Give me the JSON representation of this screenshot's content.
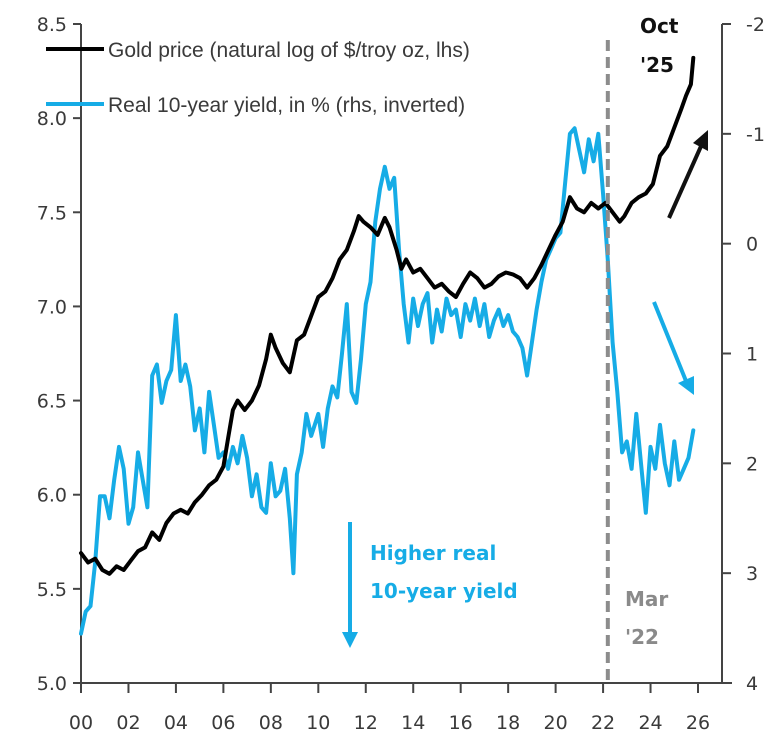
{
  "chart_data": {
    "type": "line",
    "title": "",
    "colors": {
      "gold": "#000000",
      "yield": "#16ace6",
      "marker": "#8c8c8c",
      "axis": "#444444",
      "text": "#3a3a3a"
    },
    "x_axis": {
      "range": [
        2000,
        2026.6
      ],
      "ticks": [
        2000,
        2002,
        2004,
        2006,
        2008,
        2010,
        2012,
        2014,
        2016,
        2018,
        2020,
        2022,
        2024,
        2026
      ],
      "tick_labels": [
        "00",
        "02",
        "04",
        "06",
        "08",
        "10",
        "12",
        "14",
        "16",
        "18",
        "20",
        "22",
        "24",
        "26"
      ]
    },
    "y_left": {
      "range": [
        5.0,
        8.5
      ],
      "ticks": [
        5.0,
        5.5,
        6.0,
        6.5,
        7.0,
        7.5,
        8.0,
        8.5
      ],
      "tick_labels": [
        "5.0",
        "5.5",
        "6.0",
        "6.5",
        "7.0",
        "7.5",
        "8.0",
        "8.5"
      ]
    },
    "y_right": {
      "range": [
        -2,
        4
      ],
      "inverted": true,
      "ticks": [
        -2,
        -1,
        0,
        1,
        2,
        3,
        4
      ],
      "tick_labels": [
        "-2",
        "-1",
        "0",
        "1",
        "2",
        "3",
        "4"
      ]
    },
    "legend": {
      "position": "top-left",
      "entries": [
        {
          "label": "Gold price (natural log of $/troy oz, lhs)",
          "series": "gold"
        },
        {
          "label": "Real 10-year yield, in % (rhs, inverted)",
          "series": "yield"
        }
      ]
    },
    "series": [
      {
        "name": "Gold price (natural log of $/troy oz, lhs)",
        "axis": "left",
        "x": [
          2000.0,
          2000.3,
          2000.6,
          2000.9,
          2001.2,
          2001.5,
          2001.8,
          2002.1,
          2002.4,
          2002.7,
          2003.0,
          2003.3,
          2003.6,
          2003.9,
          2004.2,
          2004.5,
          2004.8,
          2005.1,
          2005.4,
          2005.7,
          2006.0,
          2006.2,
          2006.4,
          2006.6,
          2006.9,
          2007.2,
          2007.5,
          2007.8,
          2008.0,
          2008.2,
          2008.5,
          2008.8,
          2009.1,
          2009.4,
          2009.7,
          2010.0,
          2010.3,
          2010.6,
          2010.9,
          2011.2,
          2011.5,
          2011.7,
          2011.9,
          2012.2,
          2012.5,
          2012.8,
          2013.0,
          2013.3,
          2013.5,
          2013.7,
          2014.0,
          2014.3,
          2014.6,
          2014.9,
          2015.2,
          2015.5,
          2015.8,
          2016.1,
          2016.4,
          2016.7,
          2017.0,
          2017.3,
          2017.6,
          2017.9,
          2018.2,
          2018.5,
          2018.8,
          2019.1,
          2019.4,
          2019.7,
          2020.0,
          2020.3,
          2020.6,
          2020.9,
          2021.2,
          2021.5,
          2021.8,
          2022.1,
          2022.4,
          2022.7,
          2022.9,
          2023.2,
          2023.5,
          2023.8,
          2024.1,
          2024.4,
          2024.7,
          2025.0,
          2025.3,
          2025.5,
          2025.7,
          2025.8
        ],
        "values": [
          5.69,
          5.64,
          5.66,
          5.6,
          5.58,
          5.62,
          5.6,
          5.65,
          5.7,
          5.72,
          5.8,
          5.76,
          5.85,
          5.9,
          5.92,
          5.9,
          5.96,
          6.0,
          6.05,
          6.08,
          6.15,
          6.3,
          6.45,
          6.5,
          6.45,
          6.5,
          6.58,
          6.72,
          6.85,
          6.78,
          6.7,
          6.65,
          6.82,
          6.85,
          6.95,
          7.05,
          7.08,
          7.15,
          7.25,
          7.3,
          7.4,
          7.48,
          7.45,
          7.42,
          7.38,
          7.47,
          7.42,
          7.3,
          7.2,
          7.25,
          7.18,
          7.2,
          7.15,
          7.1,
          7.12,
          7.08,
          7.05,
          7.12,
          7.18,
          7.15,
          7.1,
          7.12,
          7.16,
          7.18,
          7.17,
          7.15,
          7.1,
          7.15,
          7.22,
          7.3,
          7.38,
          7.45,
          7.58,
          7.52,
          7.5,
          7.55,
          7.52,
          7.55,
          7.5,
          7.45,
          7.48,
          7.55,
          7.58,
          7.6,
          7.65,
          7.8,
          7.85,
          7.95,
          8.05,
          8.12,
          8.18,
          8.32
        ]
      },
      {
        "name": "Real 10-year yield, in % (rhs, inverted)",
        "axis": "right",
        "x": [
          2000.0,
          2000.2,
          2000.4,
          2000.6,
          2000.8,
          2001.0,
          2001.2,
          2001.4,
          2001.6,
          2001.8,
          2002.0,
          2002.2,
          2002.4,
          2002.6,
          2002.8,
          2003.0,
          2003.2,
          2003.4,
          2003.6,
          2003.8,
          2004.0,
          2004.2,
          2004.4,
          2004.6,
          2004.8,
          2005.0,
          2005.2,
          2005.4,
          2005.6,
          2005.8,
          2006.0,
          2006.2,
          2006.4,
          2006.6,
          2006.8,
          2007.0,
          2007.2,
          2007.4,
          2007.6,
          2007.8,
          2008.0,
          2008.2,
          2008.4,
          2008.6,
          2008.8,
          2008.95,
          2009.1,
          2009.3,
          2009.5,
          2009.7,
          2010.0,
          2010.2,
          2010.4,
          2010.6,
          2010.8,
          2011.0,
          2011.2,
          2011.4,
          2011.6,
          2011.8,
          2012.0,
          2012.2,
          2012.4,
          2012.6,
          2012.8,
          2013.0,
          2013.2,
          2013.4,
          2013.6,
          2013.8,
          2014.0,
          2014.2,
          2014.4,
          2014.6,
          2014.8,
          2015.0,
          2015.2,
          2015.4,
          2015.6,
          2015.8,
          2016.0,
          2016.2,
          2016.4,
          2016.6,
          2016.8,
          2017.0,
          2017.2,
          2017.4,
          2017.6,
          2017.8,
          2018.0,
          2018.2,
          2018.4,
          2018.6,
          2018.8,
          2019.0,
          2019.2,
          2019.4,
          2019.6,
          2019.8,
          2020.0,
          2020.2,
          2020.4,
          2020.6,
          2020.8,
          2021.0,
          2021.2,
          2021.4,
          2021.6,
          2021.8,
          2022.0,
          2022.2,
          2022.4,
          2022.6,
          2022.8,
          2023.0,
          2023.2,
          2023.4,
          2023.6,
          2023.8,
          2024.0,
          2024.2,
          2024.4,
          2024.6,
          2024.8,
          2025.0,
          2025.2,
          2025.4,
          2025.6,
          2025.8
        ],
        "values": [
          3.55,
          3.35,
          3.3,
          2.9,
          2.3,
          2.3,
          2.5,
          2.15,
          1.85,
          2.05,
          2.55,
          2.4,
          1.9,
          2.15,
          2.4,
          1.2,
          1.1,
          1.45,
          1.25,
          1.15,
          0.65,
          1.25,
          1.1,
          1.3,
          1.7,
          1.5,
          1.9,
          1.35,
          1.65,
          1.95,
          1.9,
          2.05,
          1.85,
          2.0,
          1.75,
          1.95,
          2.3,
          2.1,
          2.4,
          2.45,
          2.0,
          2.3,
          2.25,
          2.05,
          2.5,
          3.0,
          2.1,
          1.9,
          1.55,
          1.75,
          1.55,
          1.85,
          1.5,
          1.3,
          1.4,
          1.0,
          0.55,
          1.35,
          1.45,
          1.05,
          0.55,
          0.35,
          -0.2,
          -0.5,
          -0.7,
          -0.5,
          -0.6,
          0.05,
          0.55,
          0.9,
          0.5,
          0.75,
          0.55,
          0.45,
          0.9,
          0.6,
          0.8,
          0.5,
          0.65,
          0.6,
          0.85,
          0.55,
          0.7,
          0.5,
          0.75,
          0.55,
          0.85,
          0.7,
          0.6,
          0.75,
          0.65,
          0.8,
          0.85,
          0.95,
          1.2,
          0.9,
          0.6,
          0.35,
          0.15,
          0.05,
          -0.05,
          -0.1,
          -0.55,
          -1.0,
          -1.05,
          -0.85,
          -0.65,
          -0.95,
          -0.75,
          -1.0,
          -0.45,
          0.15,
          0.9,
          1.35,
          1.9,
          1.8,
          2.05,
          1.55,
          2.0,
          2.45,
          1.85,
          2.05,
          1.65,
          2.0,
          2.2,
          1.8,
          2.15,
          2.05,
          1.95,
          1.7
        ]
      }
    ],
    "markers": {
      "vertical_line": {
        "x": 2022.2,
        "style": "dashed",
        "label_line1": "Mar",
        "label_line2": "'22"
      }
    },
    "annotations": {
      "end_label_line1": "Oct",
      "end_label_line2": "'25",
      "blue_note_line1": "Higher real",
      "blue_note_line2": "10-year yield",
      "gold_trend_arrow": "up-right",
      "yield_trend_arrow": "down-right",
      "yield_direction_arrow": "down"
    }
  }
}
